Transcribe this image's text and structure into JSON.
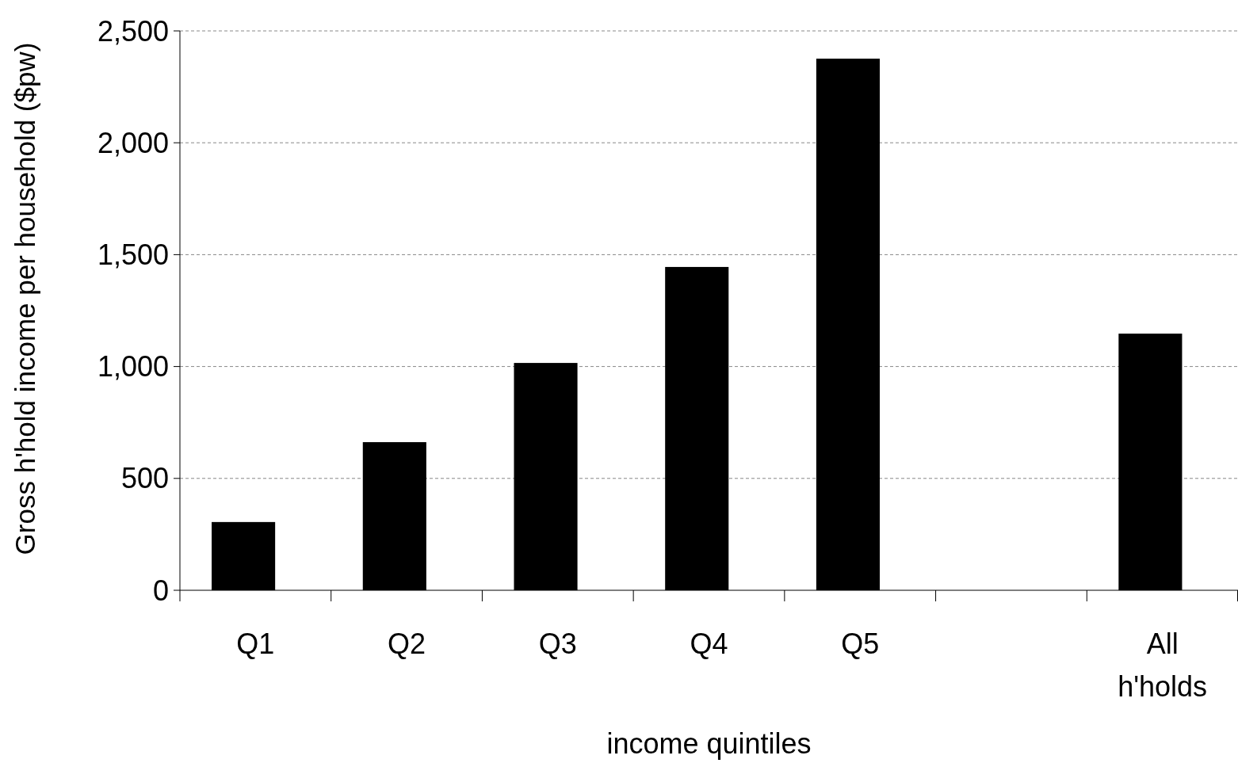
{
  "chart_data": {
    "type": "bar",
    "xlabel": "income quintiles",
    "ylabel": "Gross h'hold income per household ($pw)",
    "categories": [
      "Q1",
      "Q2",
      "Q3",
      "Q4",
      "Q5",
      null,
      "All h'holds"
    ],
    "values": [
      305,
      662,
      1016,
      1445,
      2376,
      null,
      1147
    ],
    "color": "#000000",
    "ylim": [
      0,
      2500
    ],
    "yticks": [
      0,
      {
        "value": 500,
        "label": "500"
      },
      {
        "value": 1000,
        "label": "1,000"
      },
      {
        "value": 1500,
        "label": "1,500"
      },
      {
        "value": 2000,
        "label": "2,000"
      },
      {
        "value": 2500,
        "label": "2,500"
      }
    ],
    "grid": "y"
  }
}
